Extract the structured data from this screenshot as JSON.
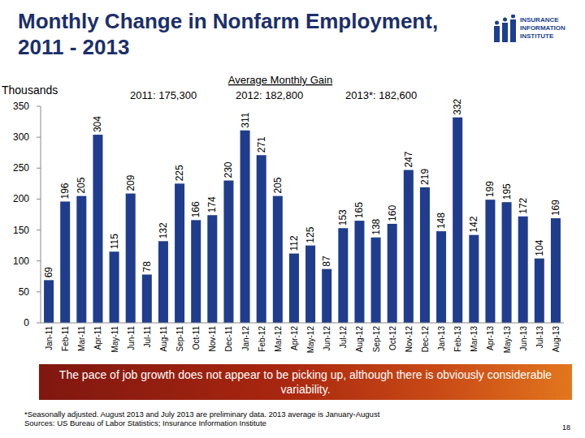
{
  "chart_data": {
    "type": "bar",
    "title": "Monthly Change in Nonfarm Employment,\n2011 - 2013",
    "ylabel": "Thousands",
    "annotations": [
      "Average Monthly Gain",
      "2011: 175,300",
      "2012: 182,800",
      "2013*: 182,600"
    ],
    "categories": [
      "Jan-11",
      "Feb-11",
      "Mar-11",
      "Apr-11",
      "May-11",
      "Jun-11",
      "Jul-11",
      "Aug-11",
      "Sep-11",
      "Oct-11",
      "Nov-11",
      "Dec-11",
      "Jan-12",
      "Feb-12",
      "Mar-12",
      "Apr-12",
      "May-12",
      "Jun-12",
      "Jul-12",
      "Aug-12",
      "Sep-12",
      "Oct-12",
      "Nov-12",
      "Dec-12",
      "Jan-13",
      "Feb-13",
      "Mar-13",
      "Apr-13",
      "May-13",
      "Jun-13",
      "Jul-13",
      "Aug-13"
    ],
    "values": [
      69,
      196,
      205,
      304,
      115,
      209,
      78,
      132,
      225,
      166,
      174,
      230,
      311,
      271,
      205,
      112,
      125,
      87,
      153,
      165,
      138,
      160,
      247,
      219,
      148,
      332,
      142,
      199,
      195,
      172,
      104,
      169
    ],
    "color": "#1f3d8c",
    "ylim": [
      0,
      350
    ],
    "yticks": [
      0,
      50,
      100,
      150,
      200,
      250,
      300,
      350
    ],
    "grid": false,
    "data_labels": true
  },
  "caption": "The pace of job growth does not appear to be picking up, although there is obviously considerable variability.",
  "footnotes": [
    "*Seasonally adjusted. August 2013 and July 2013 are preliminary data. 2013 average is January-August",
    "Sources: US Bureau of Labor Statistics; Insurance Information Institute"
  ],
  "logo": [
    "INSURANCE",
    "INFORMATION",
    "INSTITUTE"
  ],
  "page_number": "18"
}
